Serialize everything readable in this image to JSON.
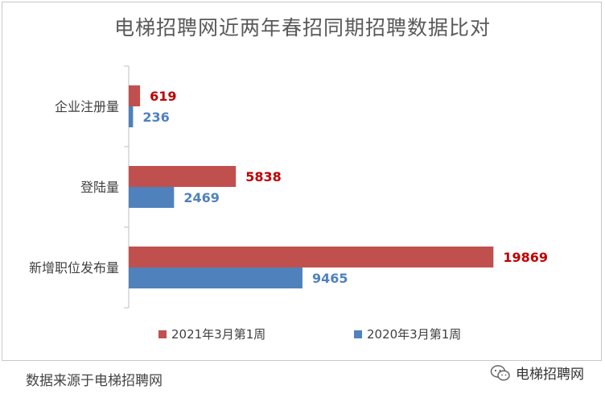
{
  "chart_data": {
    "type": "bar",
    "orientation": "horizontal",
    "title": "电梯招聘网近两年春招同期招聘数据比对",
    "categories": [
      "企业注册量",
      "登陆量",
      "新增职位发布量"
    ],
    "series": [
      {
        "name": "2021年3月第1周",
        "color": "#c0504d",
        "label_color": "#c00000",
        "values": [
          619,
          5838,
          19869
        ]
      },
      {
        "name": "2020年3月第1周",
        "color": "#4f81bd",
        "label_color": "#4f81bd",
        "values": [
          236,
          2469,
          9465
        ]
      }
    ],
    "xlim": [
      0,
      20600
    ],
    "grid": false,
    "legend": "bottom"
  },
  "footer": {
    "source": "数据来源于电梯招聘网",
    "watermark": "电梯招聘网",
    "watermark_icon": "wechat-icon"
  }
}
